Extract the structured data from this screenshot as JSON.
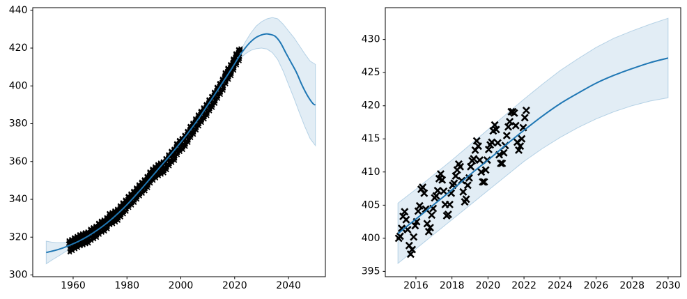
{
  "figure": {
    "background": "#ffffff",
    "description": "Two-panel scatter figure: CO2 monthly observations (black x markers) with polynomial fit line and confidence band; right panel is a zoom of 2015-2030."
  },
  "colors": {
    "fit_line": "#1f77b4",
    "band_fill": "rgba(31,119,180,0.13)",
    "band_edge": "rgba(31,119,180,0.28)",
    "scatter": "#000000",
    "spine": "#000000",
    "tick_label": "#000000"
  },
  "chart_data": [
    {
      "id": "full-record-panel",
      "type": "scatter",
      "title": "",
      "xlabel": "",
      "ylabel": "",
      "grid": false,
      "legend": null,
      "xlim": [
        1945.0,
        2053.7
      ],
      "ylim": [
        299.1,
        441.4
      ],
      "xticks": [
        1960,
        1980,
        2000,
        2020,
        2040
      ],
      "yticks": [
        300,
        320,
        340,
        360,
        380,
        400,
        420,
        440
      ],
      "scatter": {
        "marker": "x",
        "encoding": "monthly_point = annual_mean + seasonal_offset[month]",
        "start": {
          "year": 1958,
          "month": 3
        },
        "end": {
          "year": 2022,
          "month": 3
        },
        "annual_means": [
          315.3,
          316.0,
          316.9,
          317.6,
          318.5,
          319.0,
          319.6,
          320.0,
          321.4,
          322.2,
          323.0,
          324.6,
          325.7,
          326.3,
          327.5,
          329.7,
          330.2,
          331.1,
          332.0,
          333.8,
          335.4,
          336.8,
          338.8,
          340.1,
          341.5,
          343.2,
          344.9,
          346.3,
          347.6,
          349.3,
          351.7,
          353.2,
          354.4,
          355.6,
          356.4,
          357.1,
          358.8,
          360.8,
          362.6,
          363.7,
          366.7,
          368.4,
          369.5,
          371.1,
          373.2,
          375.8,
          377.5,
          379.8,
          381.9,
          383.8,
          385.6,
          387.4,
          389.9,
          391.7,
          393.9,
          396.5,
          398.6,
          400.8,
          404.2,
          406.6,
          408.5,
          411.4,
          414.2,
          416.4,
          418.5
        ],
        "seasonal_offsets": [
          -0.1,
          0.6,
          1.3,
          2.5,
          3.0,
          2.3,
          0.75,
          -1.3,
          -3.05,
          -3.25,
          -2.05,
          -0.9
        ]
      },
      "fit_line": {
        "points": [
          [
            1950,
            311.9
          ],
          [
            1953,
            312.9
          ],
          [
            1956,
            314.2
          ],
          [
            1959,
            315.9
          ],
          [
            1962,
            317.8
          ],
          [
            1965,
            320.1
          ],
          [
            1968,
            322.8
          ],
          [
            1971,
            325.8
          ],
          [
            1974,
            329.2
          ],
          [
            1977,
            333.0
          ],
          [
            1980,
            337.2
          ],
          [
            1983,
            341.8
          ],
          [
            1986,
            346.6
          ],
          [
            1989,
            351.6
          ],
          [
            1992,
            356.6
          ],
          [
            1995,
            361.6
          ],
          [
            1998,
            366.7
          ],
          [
            2001,
            372.0
          ],
          [
            2004,
            377.6
          ],
          [
            2007,
            383.5
          ],
          [
            2010,
            389.9
          ],
          [
            2013,
            396.3
          ],
          [
            2016,
            402.8
          ],
          [
            2019,
            409.4
          ],
          [
            2022,
            416.3
          ],
          [
            2024,
            420.2
          ],
          [
            2026,
            423.4
          ],
          [
            2028,
            425.7
          ],
          [
            2030,
            427.0
          ],
          [
            2031.5,
            427.5
          ],
          [
            2033,
            427.3
          ],
          [
            2035,
            426.3
          ],
          [
            2037,
            422.9
          ],
          [
            2039,
            417.5
          ],
          [
            2041,
            412.3
          ],
          [
            2043,
            407.0
          ],
          [
            2045,
            400.5
          ],
          [
            2047,
            395.0
          ],
          [
            2049,
            390.8
          ],
          [
            2050,
            389.9
          ]
        ]
      },
      "confidence_band": {
        "points": [
          [
            1950,
            305.9,
            317.9
          ],
          [
            1952,
            307.8,
            317.4
          ],
          [
            1954,
            309.5,
            317.1
          ],
          [
            1956,
            311.3,
            317.1
          ],
          [
            1958,
            313.1,
            317.5
          ],
          [
            1960,
            314.6,
            318.2
          ],
          [
            1965,
            318.8,
            321.4
          ],
          [
            1970,
            323.7,
            325.9
          ],
          [
            1975,
            329.2,
            331.4
          ],
          [
            1980,
            336.1,
            338.3
          ],
          [
            1985,
            343.8,
            346.0
          ],
          [
            1990,
            352.1,
            354.3
          ],
          [
            1995,
            360.5,
            362.7
          ],
          [
            2000,
            369.1,
            371.3
          ],
          [
            2005,
            378.4,
            380.6
          ],
          [
            2010,
            388.8,
            391.0
          ],
          [
            2015,
            399.3,
            401.9
          ],
          [
            2018,
            405.6,
            408.8
          ],
          [
            2020,
            409.9,
            413.5
          ],
          [
            2022,
            414.3,
            418.3
          ],
          [
            2024,
            417.0,
            423.4
          ],
          [
            2026,
            418.8,
            428.0
          ],
          [
            2028,
            419.7,
            431.7
          ],
          [
            2030,
            420.0,
            434.0
          ],
          [
            2032,
            419.5,
            435.5
          ],
          [
            2034,
            417.6,
            436.2
          ],
          [
            2036,
            413.9,
            435.5
          ],
          [
            2038,
            407.9,
            432.7
          ],
          [
            2040,
            400.7,
            429.1
          ],
          [
            2042,
            393.6,
            425.6
          ],
          [
            2044,
            386.0,
            421.4
          ],
          [
            2046,
            378.7,
            417.1
          ],
          [
            2048,
            372.2,
            413.2
          ],
          [
            2050,
            368.4,
            411.4
          ]
        ]
      }
    },
    {
      "id": "recent-zoom-panel",
      "type": "scatter",
      "title": "",
      "xlabel": "",
      "ylabel": "",
      "grid": false,
      "legend": null,
      "xlim": [
        2014.3,
        2030.7
      ],
      "ylim": [
        394.2,
        434.8
      ],
      "xticks": [
        2016,
        2018,
        2020,
        2022,
        2024,
        2026,
        2028,
        2030
      ],
      "yticks": [
        395,
        400,
        405,
        410,
        415,
        420,
        425,
        430
      ],
      "scatter": {
        "marker": "x",
        "encoding": "monthly values starting Jan 2015",
        "start": {
          "year": 2015,
          "month": 1
        },
        "monthly_values": [
          400.0,
          400.3,
          401.5,
          403.3,
          404.0,
          402.8,
          401.3,
          398.9,
          397.6,
          398.3,
          400.2,
          401.9,
          402.5,
          404.1,
          404.9,
          407.4,
          407.7,
          406.8,
          404.4,
          402.2,
          401.0,
          401.6,
          403.5,
          404.5,
          406.1,
          406.4,
          407.2,
          409.0,
          409.7,
          408.8,
          407.1,
          405.1,
          403.4,
          403.6,
          405.1,
          406.8,
          408.0,
          408.3,
          409.4,
          410.3,
          411.2,
          410.8,
          408.7,
          407.0,
          405.5,
          405.9,
          408.0,
          409.1,
          410.8,
          411.7,
          412.0,
          413.3,
          414.7,
          413.9,
          411.8,
          410.0,
          408.5,
          408.5,
          410.3,
          411.8,
          413.4,
          414.1,
          414.5,
          416.2,
          417.1,
          416.4,
          414.4,
          412.6,
          411.3,
          411.3,
          412.9,
          414.0,
          415.5,
          416.8,
          417.6,
          419.1,
          419.1,
          418.9,
          417.0,
          414.5,
          413.3,
          413.9,
          415.0,
          416.7,
          418.2,
          419.3
        ]
      },
      "fit_line": {
        "points": [
          [
            2015,
            400.7
          ],
          [
            2016,
            402.9
          ],
          [
            2017,
            405.1
          ],
          [
            2018,
            407.3
          ],
          [
            2019,
            409.6
          ],
          [
            2020,
            411.8
          ],
          [
            2021,
            414.1
          ],
          [
            2022,
            416.3
          ],
          [
            2023,
            418.4
          ],
          [
            2024,
            420.3
          ],
          [
            2025,
            421.9
          ],
          [
            2026,
            423.4
          ],
          [
            2027,
            424.6
          ],
          [
            2028,
            425.6
          ],
          [
            2029,
            426.5
          ],
          [
            2030,
            427.2
          ]
        ]
      },
      "confidence_band": {
        "points": [
          [
            2015,
            396.2,
            405.3
          ],
          [
            2016,
            398.4,
            407.4
          ],
          [
            2017,
            400.6,
            409.6
          ],
          [
            2018,
            402.8,
            411.8
          ],
          [
            2019,
            405.0,
            414.1
          ],
          [
            2020,
            407.2,
            416.4
          ],
          [
            2021,
            409.4,
            418.7
          ],
          [
            2022,
            411.6,
            421.0
          ],
          [
            2023,
            413.5,
            423.2
          ],
          [
            2024,
            415.2,
            425.3
          ],
          [
            2025,
            416.7,
            427.1
          ],
          [
            2026,
            418.0,
            428.8
          ],
          [
            2027,
            419.1,
            430.2
          ],
          [
            2028,
            420.0,
            431.3
          ],
          [
            2029,
            420.7,
            432.3
          ],
          [
            2030,
            421.2,
            433.2
          ]
        ]
      }
    }
  ]
}
